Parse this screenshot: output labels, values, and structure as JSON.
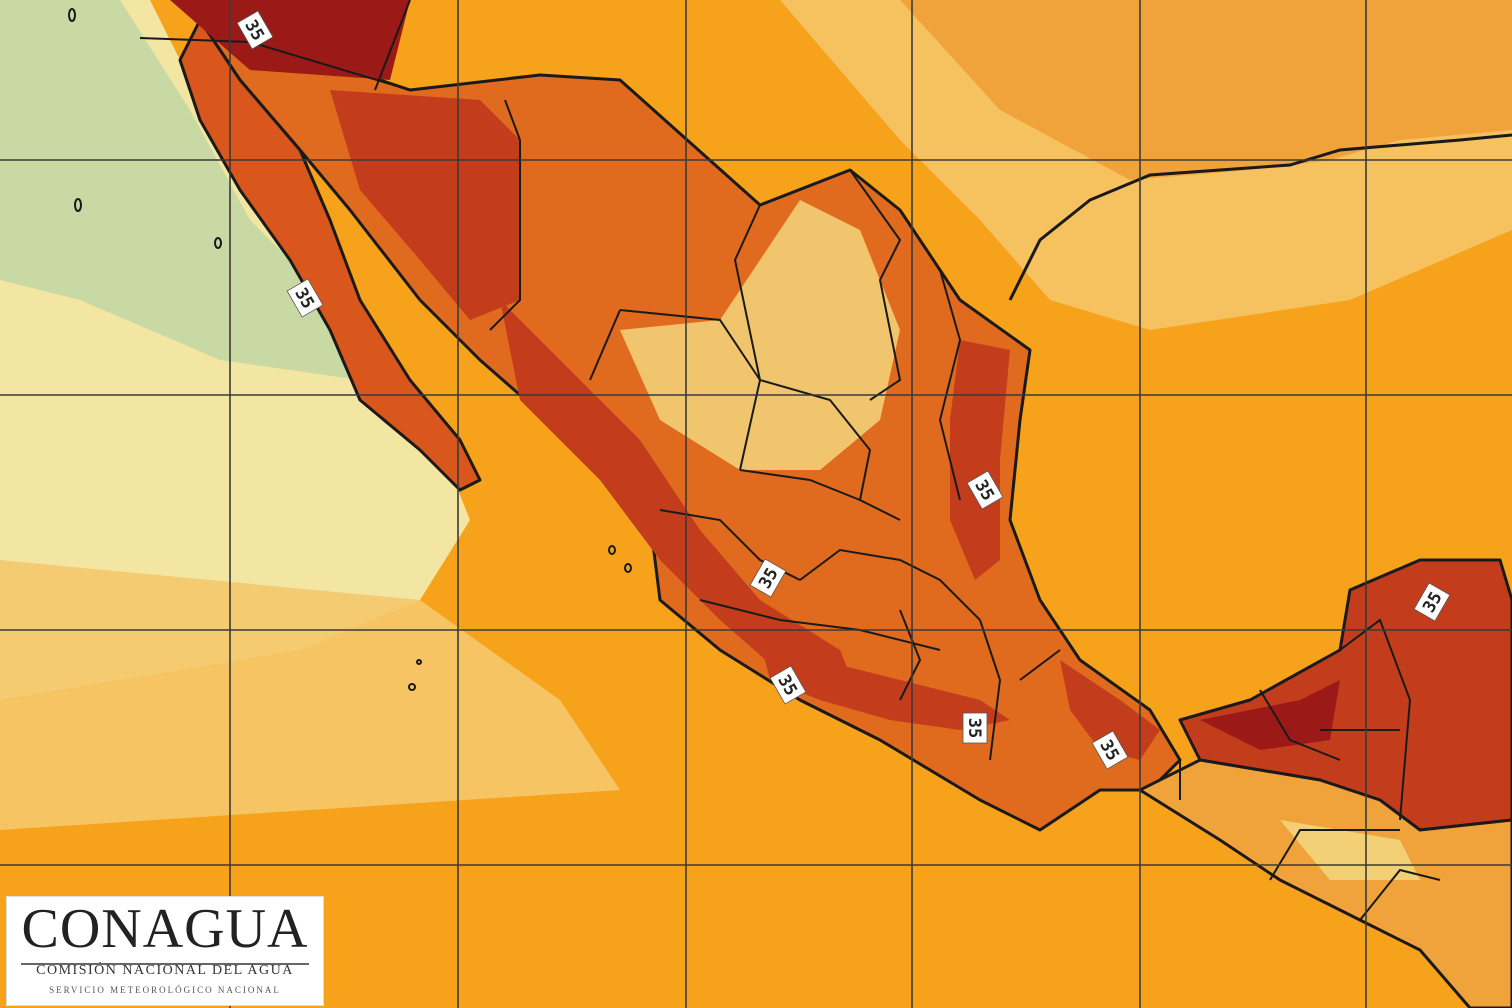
{
  "map": {
    "contour_value": "35",
    "colors": {
      "ocean_warm": "#f7a21b",
      "ocean_mild": "#f5c86b",
      "ocean_cool": "#f3e6a3",
      "pacific_cool": "#c9d9a3",
      "land_hot": "#e06a1e",
      "land_very_hot": "#c33d1d",
      "land_extreme": "#9b1a18",
      "land_mild": "#f3cf75",
      "outline": "#1a1a1a",
      "grid": "#3a3a3a"
    }
  },
  "logo": {
    "wordmark": "CONAGUA",
    "subtitle": "COMISIÓN NACIONAL DEL AGUA",
    "service": "SERVICIO METEOROLÓGICO NACIONAL"
  }
}
